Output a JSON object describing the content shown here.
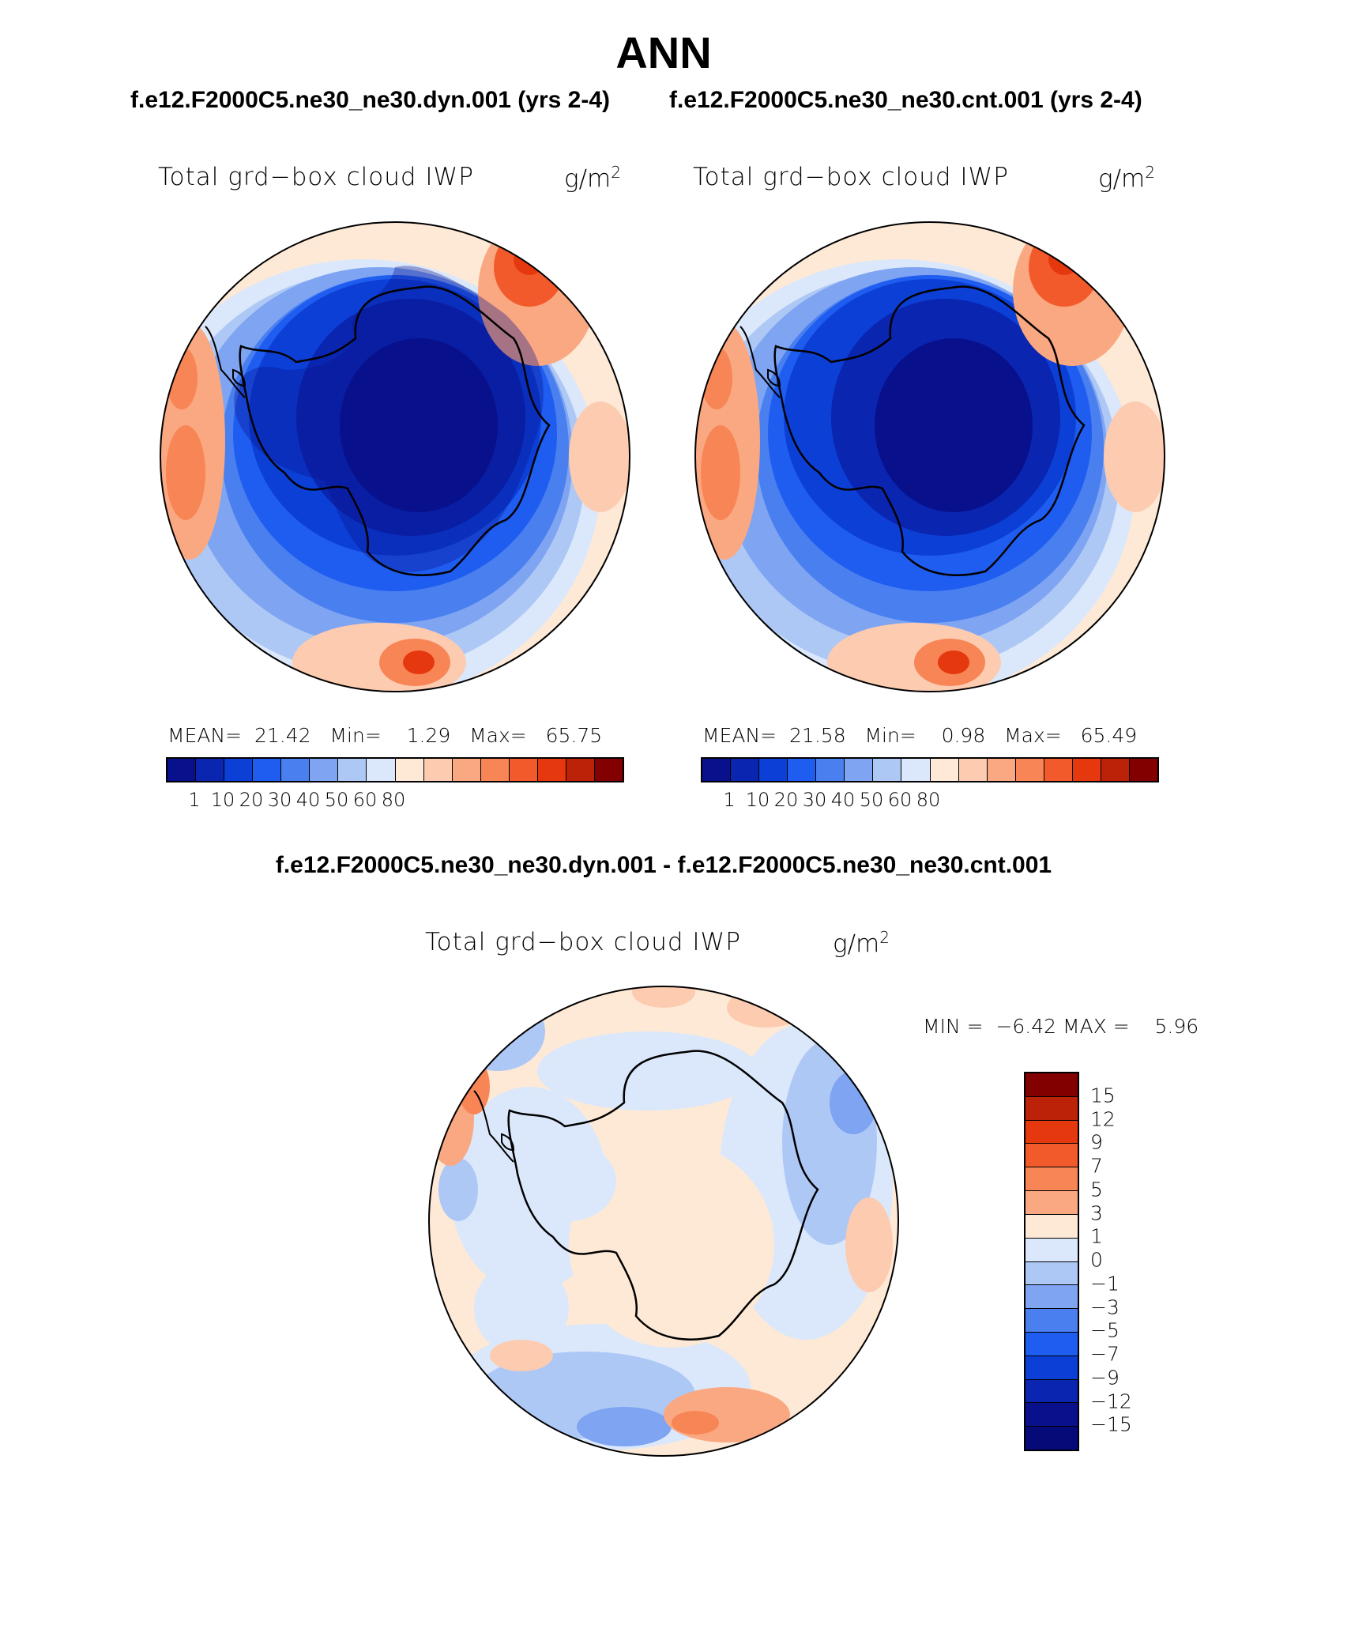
{
  "title": "ANN",
  "panels": [
    {
      "case": "f.e12.F2000C5.ne30_ne30.dyn.001 (yrs 2-4)",
      "variable": "Total grd−box cloud IWP",
      "units": "g/m",
      "units_exp": "2",
      "stats": {
        "mean_label": "MEAN=",
        "mean": "21.42",
        "min_label": "Min=",
        "min": "1.29",
        "max_label": "Max=",
        "max": "65.75"
      }
    },
    {
      "case": "f.e12.F2000C5.ne30_ne30.cnt.001 (yrs 2-4)",
      "variable": "Total grd−box cloud IWP",
      "units": "g/m",
      "units_exp": "2",
      "stats": {
        "mean_label": "MEAN=",
        "mean": "21.58",
        "min_label": "Min=",
        "min": "0.98",
        "max_label": "Max=",
        "max": "65.49"
      }
    }
  ],
  "colorbar_abs": {
    "colors": [
      "#08108c",
      "#0a25b0",
      "#0c3fd6",
      "#1f5df0",
      "#4a7ff0",
      "#7ea4f2",
      "#aec8f6",
      "#dbe8fb",
      "#fde9d6",
      "#fccbb0",
      "#faa882",
      "#f88556",
      "#f35a2b",
      "#e5380e",
      "#bb2207",
      "#820000"
    ],
    "labels": [
      "1",
      "10",
      "20",
      "30",
      "40",
      "50",
      "60",
      "80"
    ]
  },
  "difference": {
    "title": "f.e12.F2000C5.ne30_ne30.dyn.001 - f.e12.F2000C5.ne30_ne30.cnt.001",
    "variable": "Total grd−box cloud IWP",
    "units": "g/m",
    "units_exp": "2",
    "min_label": "MIN =",
    "min": "−6.42",
    "max_label": "MAX =",
    "max": "5.96"
  },
  "colorbar_diff": {
    "colors": [
      "#820000",
      "#bb2207",
      "#e5380e",
      "#f35a2b",
      "#f88556",
      "#faa882",
      "#fde9d6",
      "#dbe8fb",
      "#aec8f6",
      "#7ea4f2",
      "#4a7ff0",
      "#1f5df0",
      "#0c3fd6",
      "#0a25b0",
      "#08108c",
      "#050a78"
    ],
    "labels": [
      "15",
      "12",
      "9",
      "7",
      "5",
      "3",
      "1",
      "0",
      "−1",
      "−3",
      "−5",
      "−7",
      "−9",
      "−12",
      "−15"
    ]
  }
}
